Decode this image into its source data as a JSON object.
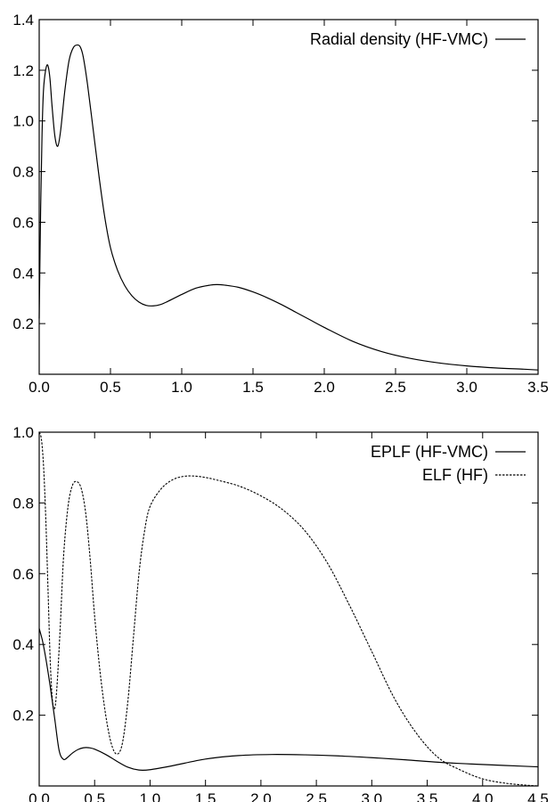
{
  "chart_data": [
    {
      "type": "line",
      "xlim": [
        0,
        3.5
      ],
      "ylim": [
        0,
        1.4
      ],
      "x_ticks": [
        "0.0",
        "0.5",
        "1.0",
        "1.5",
        "2.0",
        "2.5",
        "3.0",
        "3.5"
      ],
      "x_tick_values": [
        0,
        0.5,
        1.0,
        1.5,
        2.0,
        2.5,
        3.0,
        3.5
      ],
      "y_ticks": [
        "0.2",
        "0.4",
        "0.6",
        "0.8",
        "1.0",
        "1.2",
        "1.4"
      ],
      "y_tick_values": [
        0.2,
        0.4,
        0.6,
        0.8,
        1.0,
        1.2,
        1.4
      ],
      "legend_position": "top-right",
      "series": [
        {
          "name": "Radial density (HF-VMC)",
          "style": "solid",
          "color": "#000000",
          "x": [
            0.0,
            0.01,
            0.02,
            0.03,
            0.045,
            0.06,
            0.075,
            0.09,
            0.11,
            0.13,
            0.15,
            0.18,
            0.21,
            0.24,
            0.27,
            0.29,
            0.31,
            0.34,
            0.38,
            0.42,
            0.46,
            0.5,
            0.55,
            0.6,
            0.65,
            0.7,
            0.75,
            0.8,
            0.85,
            0.9,
            1.0,
            1.1,
            1.2,
            1.25,
            1.3,
            1.4,
            1.5,
            1.6,
            1.7,
            1.8,
            1.9,
            2.0,
            2.2,
            2.4,
            2.6,
            2.8,
            3.0,
            3.2,
            3.4,
            3.5
          ],
          "y": [
            0.22,
            0.65,
            0.95,
            1.12,
            1.2,
            1.22,
            1.17,
            1.06,
            0.94,
            0.9,
            0.96,
            1.12,
            1.24,
            1.29,
            1.3,
            1.29,
            1.25,
            1.14,
            0.96,
            0.78,
            0.62,
            0.5,
            0.41,
            0.35,
            0.31,
            0.285,
            0.272,
            0.27,
            0.275,
            0.287,
            0.315,
            0.34,
            0.352,
            0.354,
            0.352,
            0.343,
            0.325,
            0.302,
            0.275,
            0.245,
            0.215,
            0.185,
            0.13,
            0.09,
            0.063,
            0.045,
            0.033,
            0.025,
            0.02,
            0.017
          ]
        }
      ]
    },
    {
      "type": "line",
      "xlim": [
        0,
        4.5
      ],
      "ylim": [
        0,
        1.0
      ],
      "x_ticks": [
        "0.0",
        "0.5",
        "1.0",
        "1.5",
        "2.0",
        "2.5",
        "3.0",
        "3.5",
        "4.0",
        "4.5"
      ],
      "x_tick_values": [
        0,
        0.5,
        1.0,
        1.5,
        2.0,
        2.5,
        3.0,
        3.5,
        4.0,
        4.5
      ],
      "y_ticks": [
        "0.2",
        "0.4",
        "0.6",
        "0.8",
        "1.0"
      ],
      "y_tick_values": [
        0.2,
        0.4,
        0.6,
        0.8,
        1.0
      ],
      "legend_position": "top-right",
      "series": [
        {
          "name": "EPLF (HF-VMC)",
          "style": "solid",
          "color": "#000000",
          "x": [
            0.0,
            0.03,
            0.06,
            0.1,
            0.14,
            0.18,
            0.22,
            0.26,
            0.3,
            0.35,
            0.4,
            0.45,
            0.5,
            0.6,
            0.7,
            0.8,
            0.9,
            1.0,
            1.2,
            1.5,
            1.8,
            2.1,
            2.4,
            2.7,
            3.0,
            3.3,
            3.6,
            3.9,
            4.2,
            4.5
          ],
          "y": [
            0.445,
            0.41,
            0.36,
            0.28,
            0.19,
            0.1,
            0.075,
            0.082,
            0.093,
            0.103,
            0.108,
            0.108,
            0.104,
            0.089,
            0.07,
            0.053,
            0.045,
            0.046,
            0.057,
            0.076,
            0.086,
            0.089,
            0.088,
            0.085,
            0.08,
            0.074,
            0.067,
            0.062,
            0.058,
            0.054
          ]
        },
        {
          "name": "ELF (HF)",
          "style": "dashed",
          "color": "#000000",
          "x": [
            0.0,
            0.02,
            0.04,
            0.06,
            0.08,
            0.1,
            0.12,
            0.14,
            0.16,
            0.19,
            0.22,
            0.26,
            0.3,
            0.34,
            0.38,
            0.42,
            0.46,
            0.5,
            0.55,
            0.6,
            0.65,
            0.7,
            0.75,
            0.8,
            0.85,
            0.9,
            0.95,
            1.0,
            1.1,
            1.2,
            1.3,
            1.4,
            1.5,
            1.6,
            1.8,
            2.0,
            2.2,
            2.4,
            2.6,
            2.8,
            3.0,
            3.2,
            3.4,
            3.6,
            3.8,
            4.0,
            4.2,
            4.4,
            4.5
          ],
          "y": [
            1.0,
            0.98,
            0.9,
            0.75,
            0.55,
            0.35,
            0.24,
            0.22,
            0.28,
            0.45,
            0.65,
            0.79,
            0.85,
            0.86,
            0.84,
            0.77,
            0.64,
            0.48,
            0.32,
            0.2,
            0.12,
            0.09,
            0.12,
            0.24,
            0.42,
            0.6,
            0.72,
            0.79,
            0.84,
            0.865,
            0.875,
            0.876,
            0.872,
            0.865,
            0.848,
            0.82,
            0.78,
            0.72,
            0.63,
            0.51,
            0.38,
            0.25,
            0.15,
            0.08,
            0.045,
            0.02,
            0.008,
            0.002,
            0.0
          ]
        }
      ]
    }
  ]
}
